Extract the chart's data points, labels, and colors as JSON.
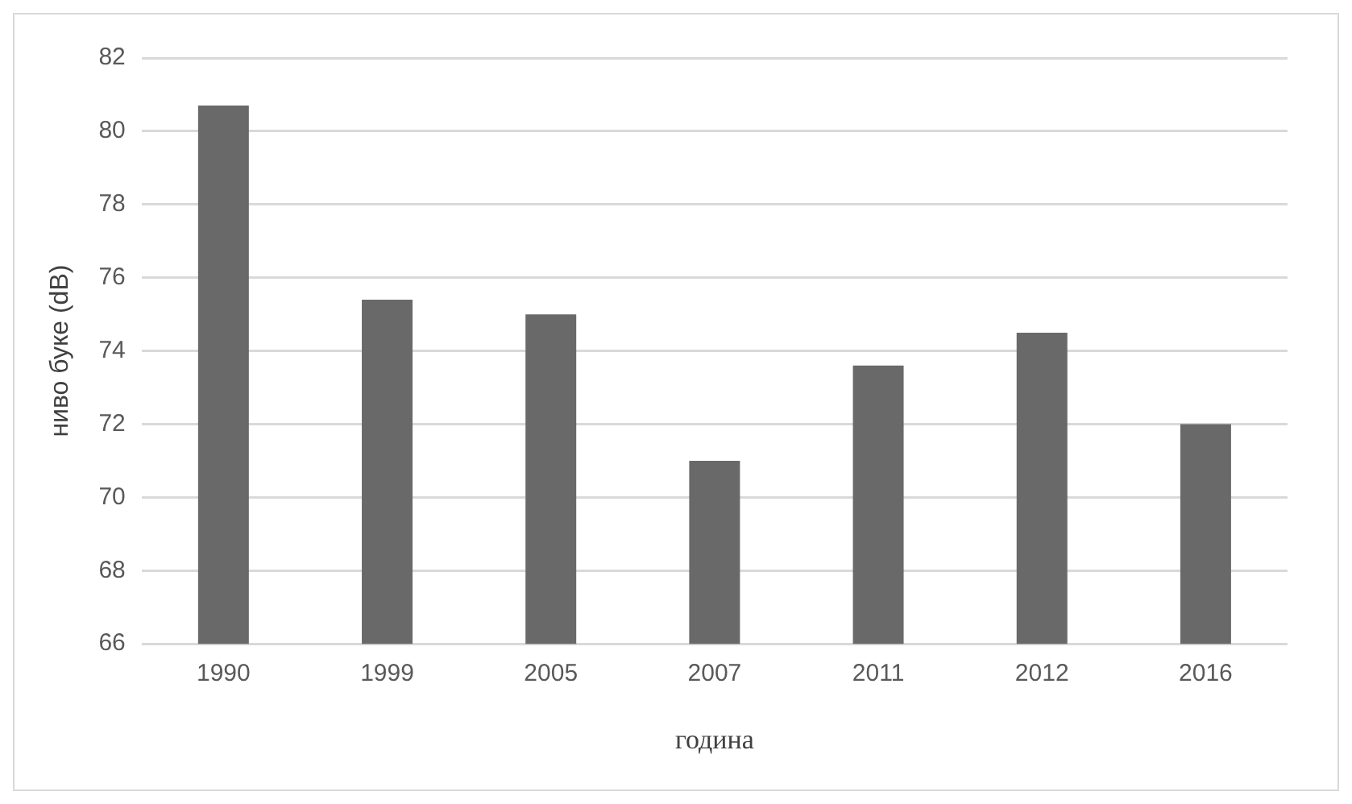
{
  "chart_data": {
    "type": "bar",
    "xlabel": "година",
    "ylabel": "ниво буке (dB)",
    "categories": [
      "1990",
      "1999",
      "2005",
      "2007",
      "2011",
      "2012",
      "2016"
    ],
    "values": [
      80.7,
      75.4,
      75.0,
      71.0,
      73.6,
      74.5,
      72.0
    ],
    "color": "#696969",
    "ylim": [
      66,
      82
    ],
    "yticks": [
      66,
      68,
      70,
      72,
      74,
      76,
      78,
      80,
      82
    ],
    "grid": "y",
    "legend": false
  }
}
